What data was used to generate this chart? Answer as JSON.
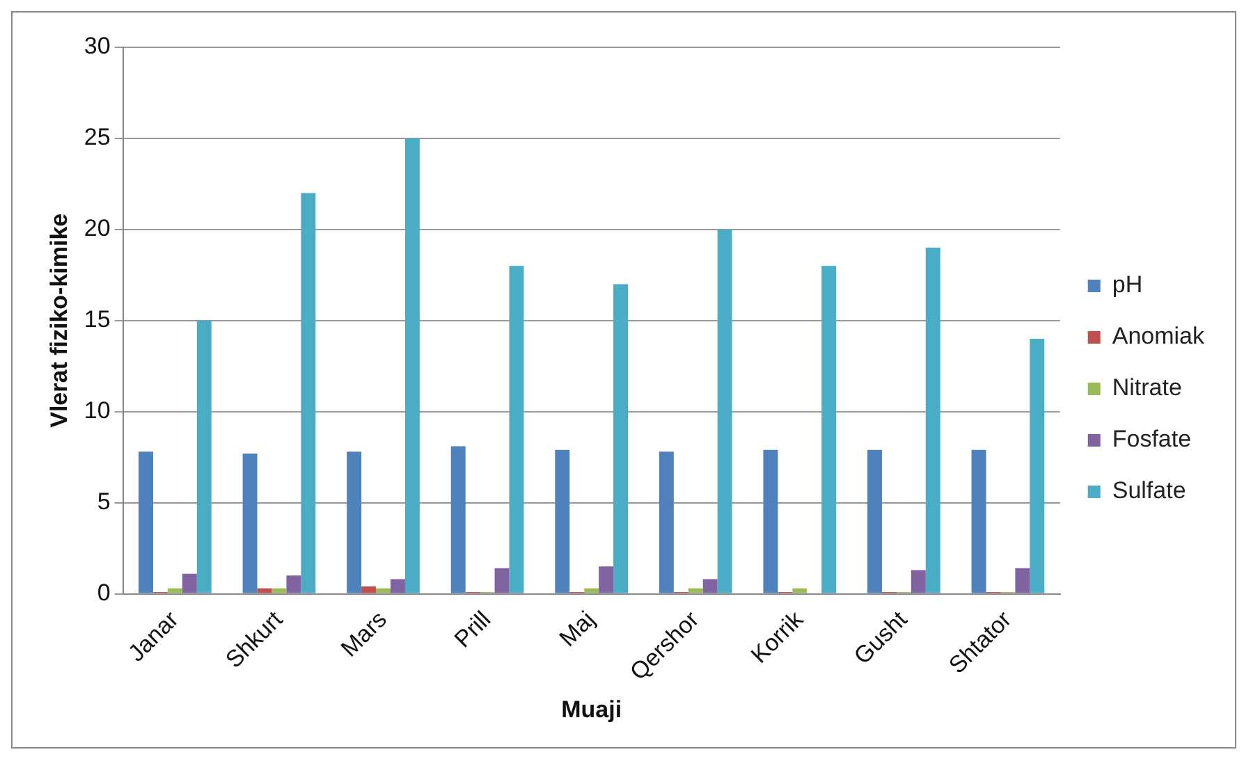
{
  "chart_data": {
    "type": "bar",
    "xlabel": "Muaji",
    "ylabel": "Vlerat fiziko-kimike",
    "categories": [
      "Janar",
      "Shkurt",
      "Mars",
      "Prill",
      "Maj",
      "Qershor",
      "Korrik",
      "Gusht",
      "Shtator"
    ],
    "series": [
      {
        "name": "pH",
        "color": "#4f81bd",
        "values": [
          7.8,
          7.7,
          7.8,
          8.1,
          7.9,
          7.8,
          7.9,
          7.9,
          7.9
        ]
      },
      {
        "name": "Anomiak",
        "color": "#c0504d",
        "values": [
          0.1,
          0.3,
          0.4,
          0.1,
          0.1,
          0.1,
          0.1,
          0.1,
          0.1
        ]
      },
      {
        "name": "Nitrate",
        "color": "#9bbb59",
        "values": [
          0.3,
          0.3,
          0.3,
          0.1,
          0.3,
          0.3,
          0.3,
          0.1,
          0.1
        ]
      },
      {
        "name": "Fosfate",
        "color": "#8064a2",
        "values": [
          1.1,
          1.0,
          0.8,
          1.4,
          1.5,
          0.8,
          0,
          1.3,
          1.4
        ]
      },
      {
        "name": "Sulfate",
        "color": "#4bacc6",
        "values": [
          15,
          22,
          25,
          18,
          17,
          20,
          18,
          19,
          14
        ]
      }
    ],
    "ylim": [
      0,
      30
    ],
    "yticks": [
      0,
      5,
      10,
      15,
      20,
      25,
      30
    ],
    "grid": "y",
    "legend": "right"
  }
}
